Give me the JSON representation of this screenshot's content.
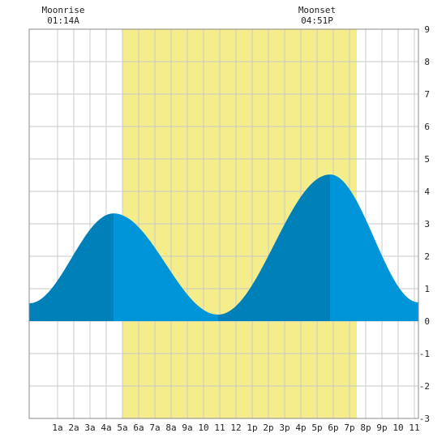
{
  "moon": {
    "rise_label": "Moonrise",
    "rise_time": "01:14A",
    "set_label": "Moonset",
    "set_time": "04:51P"
  },
  "chart_data": {
    "type": "area",
    "x_unit": "hour of day",
    "xlim": [
      -0.75,
      23.25
    ],
    "ylim": [
      -3,
      9
    ],
    "y_ticks": [
      -3,
      -2,
      -1,
      0,
      1,
      2,
      3,
      4,
      5,
      6,
      7,
      8,
      9
    ],
    "x_ticks": [
      {
        "x": 1,
        "label": "1a"
      },
      {
        "x": 2,
        "label": "2a"
      },
      {
        "x": 3,
        "label": "3a"
      },
      {
        "x": 4,
        "label": "4a"
      },
      {
        "x": 5,
        "label": "5a"
      },
      {
        "x": 6,
        "label": "6a"
      },
      {
        "x": 7,
        "label": "7a"
      },
      {
        "x": 8,
        "label": "8a"
      },
      {
        "x": 9,
        "label": "9a"
      },
      {
        "x": 10,
        "label": "10"
      },
      {
        "x": 11,
        "label": "11"
      },
      {
        "x": 12,
        "label": "12"
      },
      {
        "x": 13,
        "label": "1p"
      },
      {
        "x": 14,
        "label": "2p"
      },
      {
        "x": 15,
        "label": "3p"
      },
      {
        "x": 16,
        "label": "4p"
      },
      {
        "x": 17,
        "label": "5p"
      },
      {
        "x": 18,
        "label": "6p"
      },
      {
        "x": 19,
        "label": "7p"
      },
      {
        "x": 20,
        "label": "8p"
      },
      {
        "x": 21,
        "label": "9p"
      },
      {
        "x": 22,
        "label": "10"
      },
      {
        "x": 23,
        "label": "11"
      }
    ],
    "daylight": [
      5.0,
      19.45
    ],
    "tide_extremes": [
      {
        "x": -0.75,
        "y": 0.55
      },
      {
        "x": 4.45,
        "y": 3.32
      },
      {
        "x": 10.9,
        "y": 0.2
      },
      {
        "x": 17.8,
        "y": 4.52
      },
      {
        "x": 23.25,
        "y": 0.58
      }
    ],
    "grid": true,
    "colors": {
      "daylight": "#f5ec8c",
      "tide_rising": "#0080b8",
      "tide_falling": "#0094d8",
      "grid": "#c8c8c8",
      "frame": "#888888"
    }
  }
}
